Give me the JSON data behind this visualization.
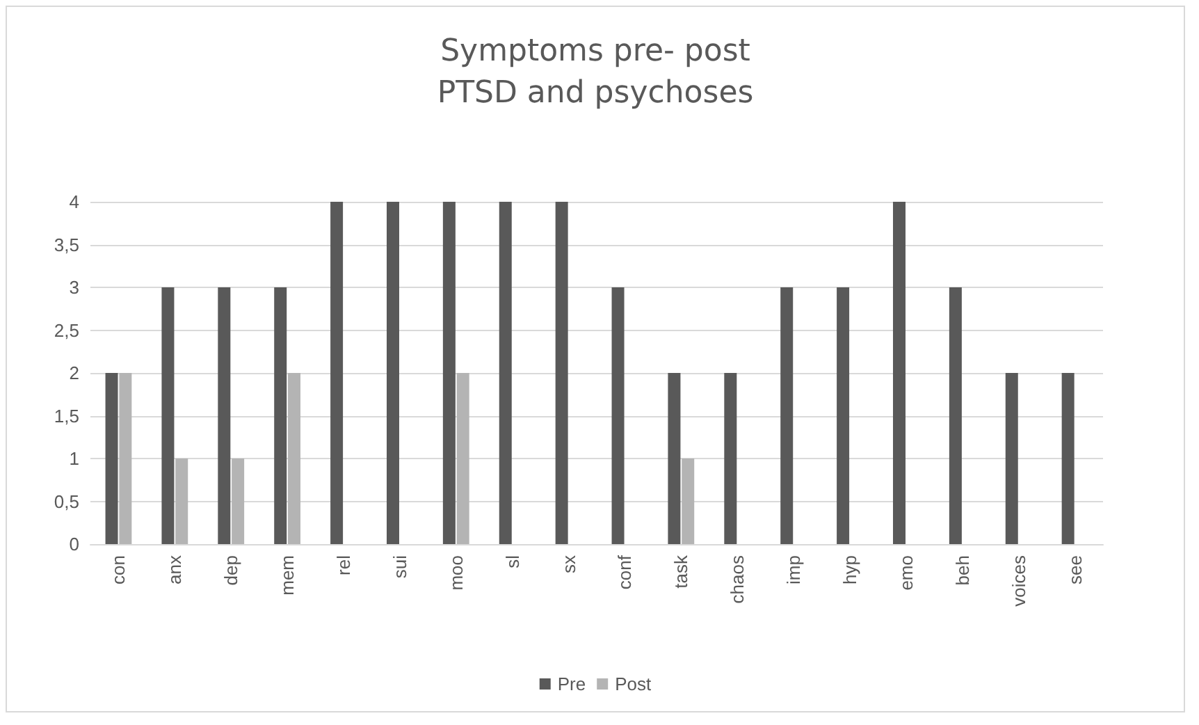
{
  "chart_data": {
    "type": "bar",
    "title": "Symptoms pre- post\nPTSD and psychoses",
    "categories": [
      "con",
      "anx",
      "dep",
      "mem",
      "rel",
      "sui",
      "moo",
      "sl",
      "sx",
      "conf",
      "task",
      "chaos",
      "imp",
      "hyp",
      "emo",
      "beh",
      "voices",
      "see"
    ],
    "series": [
      {
        "name": "Pre",
        "color": "#595959",
        "values": [
          2,
          3,
          3,
          3,
          4,
          4,
          4,
          4,
          4,
          3,
          2,
          2,
          3,
          3,
          4,
          3,
          2,
          2
        ]
      },
      {
        "name": "Post",
        "color": "#b4b4b4",
        "values": [
          2,
          1,
          1,
          2,
          0,
          0,
          2,
          0,
          0,
          0,
          1,
          0,
          0,
          0,
          0,
          0,
          0,
          0
        ]
      }
    ],
    "ylim": [
      0,
      4
    ],
    "yticks": [
      0,
      {
        "value": 0.5,
        "label": "0,5"
      },
      1,
      {
        "value": 1.5,
        "label": "1,5"
      },
      2,
      {
        "value": 2.5,
        "label": "2,5"
      },
      3,
      {
        "value": 3.5,
        "label": "3,5"
      },
      4
    ],
    "grid": "y",
    "legend": "bottom"
  }
}
